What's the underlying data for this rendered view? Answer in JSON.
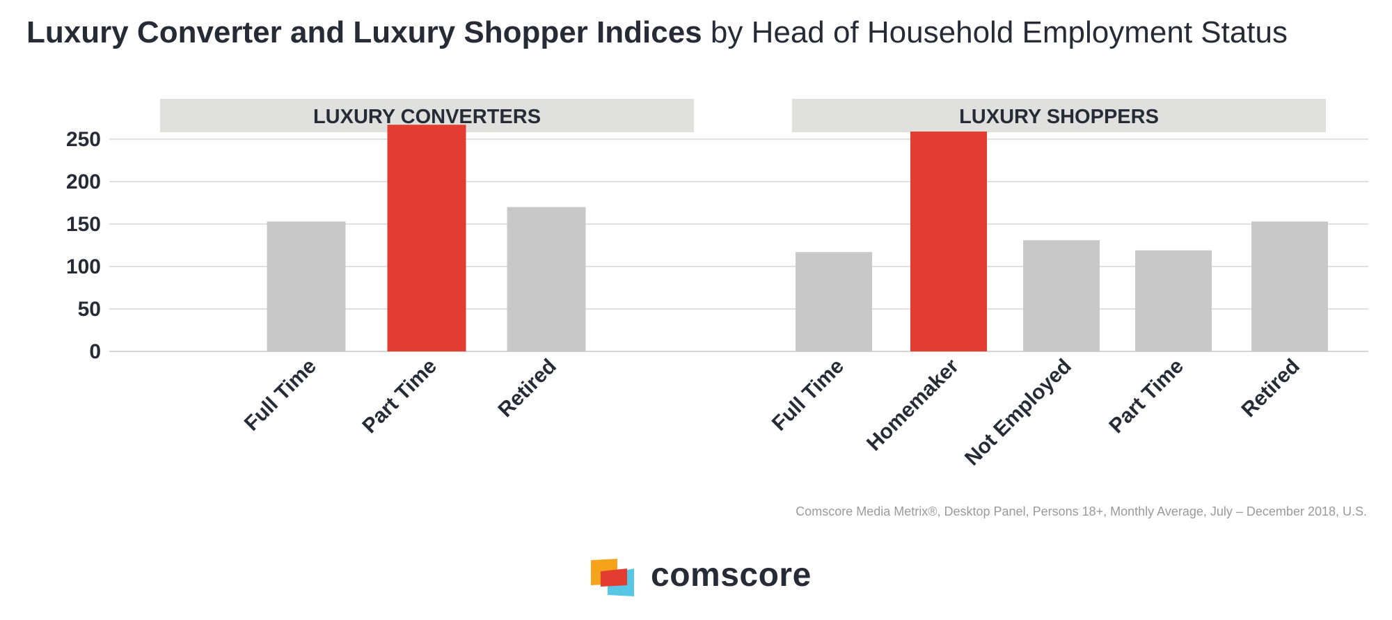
{
  "title": {
    "bold": "Luxury Converter and Luxury Shopper Indices",
    "rest": " by Head of Household Employment Status"
  },
  "chart_data": {
    "type": "bar",
    "ylim": [
      0,
      250
    ],
    "yticks": [
      0,
      50,
      100,
      150,
      200,
      250
    ],
    "grid": true,
    "highlight_color": "#e23d30",
    "base_color": "#c8c8c8",
    "panels": [
      {
        "title": "LUXURY CONVERTERS",
        "categories": [
          "Full Time",
          "Part Time",
          "Retired"
        ],
        "values": [
          153,
          267,
          170
        ],
        "highlight": [
          "Part Time"
        ]
      },
      {
        "title": "LUXURY SHOPPERS",
        "categories": [
          "Full Time",
          "Homemaker",
          "Not Employed",
          "Part Time",
          "Retired"
        ],
        "values": [
          117,
          259,
          131,
          119,
          153
        ],
        "highlight": [
          "Homemaker"
        ]
      }
    ]
  },
  "footnote": "Comscore Media Metrix®, Desktop Panel, Persons 18+, Monthly Average, July – December 2018, U.S.",
  "logo": {
    "text": "comscore"
  }
}
